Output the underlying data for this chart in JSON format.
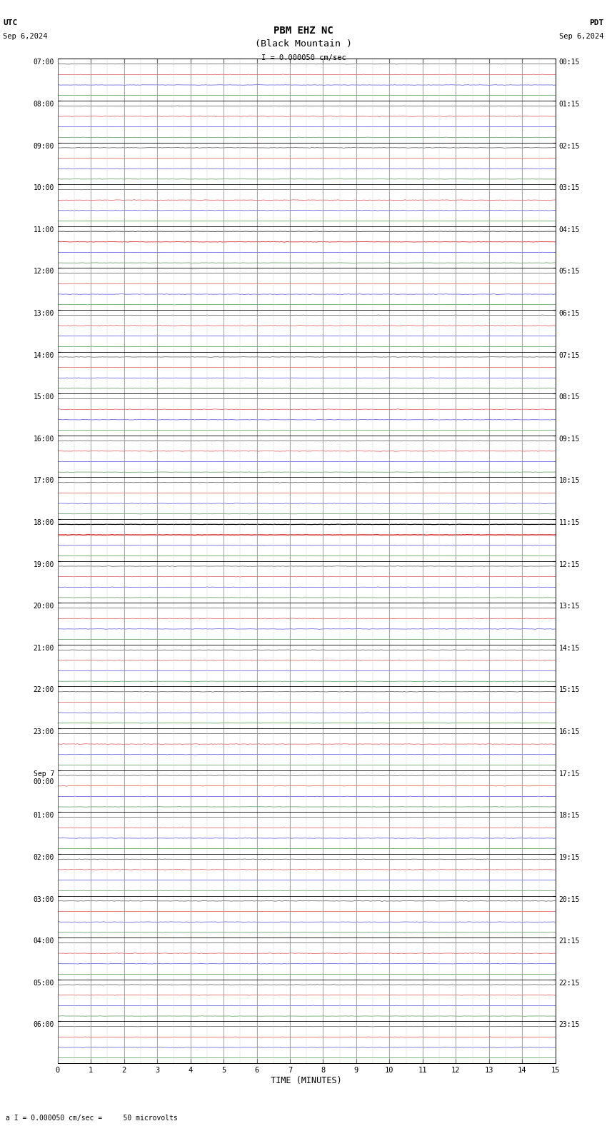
{
  "title_line1": "PBM EHZ NC",
  "title_line2": "(Black Mountain )",
  "scale_label": "I = 0.000050 cm/sec",
  "utc_label": "UTC",
  "utc_date": "Sep 6,2024",
  "pdt_label": "PDT",
  "pdt_date": "Sep 6,2024",
  "xlabel": "TIME (MINUTES)",
  "footer_label": "a I = 0.000050 cm/sec =     50 microvolts",
  "xmin": 0,
  "xmax": 15,
  "background_color": "#ffffff",
  "trace_color_black": "#000000",
  "trace_color_red": "#cc0000",
  "trace_color_blue": "#0000cc",
  "trace_color_green": "#006600",
  "grid_color_major": "#888888",
  "grid_color_minor": "#cccccc",
  "separator_color": "#000000",
  "left_hour_labels": [
    "07:00",
    "08:00",
    "09:00",
    "10:00",
    "11:00",
    "12:00",
    "13:00",
    "14:00",
    "15:00",
    "16:00",
    "17:00",
    "18:00",
    "19:00",
    "20:00",
    "21:00",
    "22:00",
    "23:00",
    "Sep 7\n00:00",
    "01:00",
    "02:00",
    "03:00",
    "04:00",
    "05:00",
    "06:00"
  ],
  "right_hour_labels": [
    "00:15",
    "01:15",
    "02:15",
    "03:15",
    "04:15",
    "05:15",
    "06:15",
    "07:15",
    "08:15",
    "09:15",
    "10:15",
    "11:15",
    "12:15",
    "13:15",
    "14:15",
    "15:15",
    "16:15",
    "17:15",
    "18:15",
    "19:15",
    "20:15",
    "21:15",
    "22:15",
    "23:15"
  ],
  "n_hours": 24,
  "traces_per_hour": 4,
  "n_points": 1800,
  "noise_amp_black": 0.018,
  "noise_amp_red": 0.022,
  "noise_amp_blue": 0.018,
  "noise_amp_green": 0.012,
  "special_thick_hours": [
    10,
    17
  ],
  "special_thick_color_black": "#000000",
  "special_thick_color_red": "#cc0000"
}
